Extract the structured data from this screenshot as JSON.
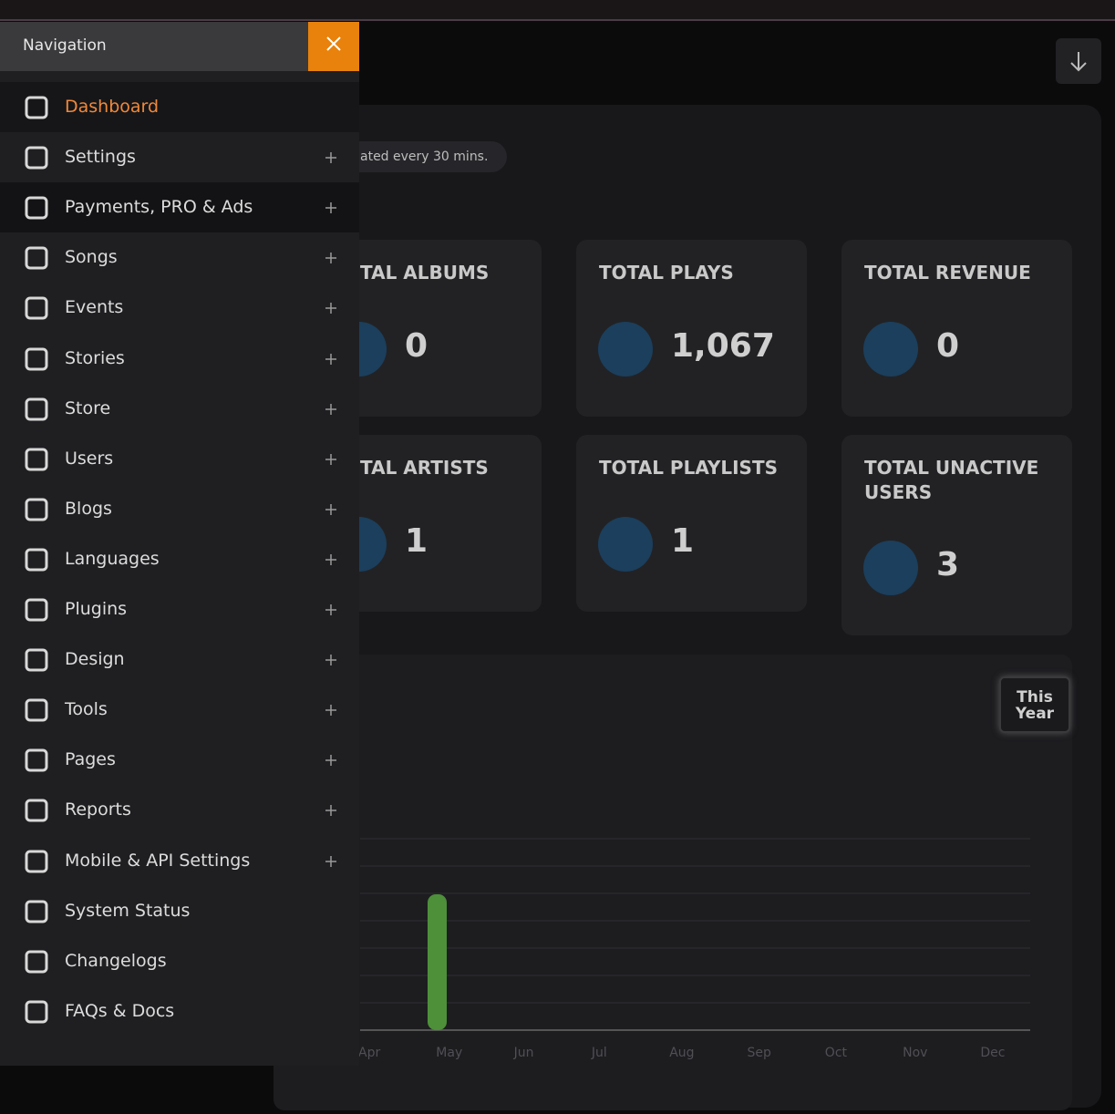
{
  "nav": {
    "title": "Navigation",
    "items": [
      {
        "label": "Dashboard",
        "active": true
      },
      {
        "label": "Settings",
        "expandable": true
      },
      {
        "label": "Payments, PRO & Ads",
        "expandable": true
      },
      {
        "label": "Songs",
        "expandable": true
      },
      {
        "label": "Events",
        "expandable": true
      },
      {
        "label": "Stories",
        "expandable": true
      },
      {
        "label": "Store",
        "expandable": true
      },
      {
        "label": "Users",
        "expandable": true
      },
      {
        "label": "Blogs",
        "expandable": true
      },
      {
        "label": "Languages",
        "expandable": true
      },
      {
        "label": "Plugins",
        "expandable": true
      },
      {
        "label": "Design",
        "expandable": true
      },
      {
        "label": "Tools",
        "expandable": true
      },
      {
        "label": "Pages",
        "expandable": true
      },
      {
        "label": "Reports",
        "expandable": true
      },
      {
        "label": "Mobile & API Settings",
        "expandable": true
      },
      {
        "label": "System Status"
      },
      {
        "label": "Changelogs"
      },
      {
        "label": "FAQs & Docs"
      }
    ]
  },
  "notice": "ated every 30 mins.",
  "stats": [
    {
      "title": "TAL ALBUMS",
      "value": "0"
    },
    {
      "title": "TOTAL PLAYS",
      "value": "1,067"
    },
    {
      "title": "TOTAL REVENUE",
      "value": "0"
    },
    {
      "title": "TAL ARTISTS",
      "value": "1"
    },
    {
      "title": "TOTAL PLAYLISTS",
      "value": "1"
    },
    {
      "title": "TOTAL UNACTIVE USERS",
      "value": "3"
    }
  ],
  "chart": {
    "button": "This Year",
    "months": [
      "Apr",
      "May",
      "Jun",
      "Jul",
      "Aug",
      "Sep",
      "Oct",
      "Nov",
      "Dec"
    ]
  }
}
